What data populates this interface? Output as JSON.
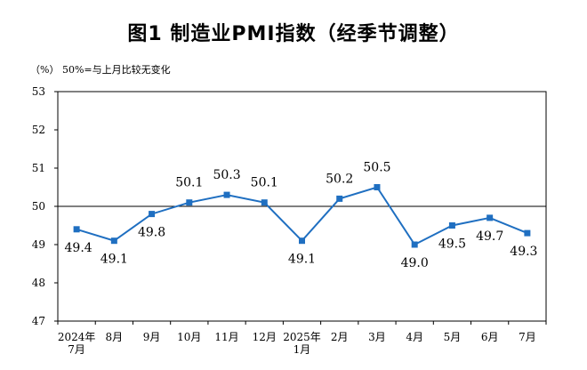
{
  "chart_data": {
    "type": "line",
    "title": "图1  制造业PMI指数（经季节调整）",
    "unit_note": "（%）  50%=与上月比较无变化",
    "categories": [
      [
        "2024年",
        "7月"
      ],
      [
        "8月"
      ],
      [
        "9月"
      ],
      [
        "10月"
      ],
      [
        "11月"
      ],
      [
        "12月"
      ],
      [
        "2025年",
        "1月"
      ],
      [
        "2月"
      ],
      [
        "3月"
      ],
      [
        "4月"
      ],
      [
        "5月"
      ],
      [
        "6月"
      ],
      [
        "7月"
      ]
    ],
    "series": [
      {
        "values": [
          49.4,
          49.1,
          49.8,
          50.1,
          50.3,
          50.1,
          49.1,
          50.2,
          50.5,
          49.0,
          49.5,
          49.7,
          49.3
        ],
        "labels": [
          "49.4",
          "49.1",
          "49.8",
          "50.1",
          "50.3",
          "50.1",
          "49.1",
          "50.2",
          "50.5",
          "49.0",
          "49.5",
          "49.7",
          "49.3"
        ],
        "color": "#1f6fc1"
      }
    ],
    "label_placement": [
      "below",
      "below",
      "below",
      "above",
      "above",
      "above",
      "below",
      "above",
      "above",
      "below",
      "below",
      "below",
      "below"
    ],
    "yticks": [
      47,
      48,
      49,
      50,
      51,
      52,
      53
    ],
    "ylim": [
      47,
      53
    ],
    "reference_line": 50,
    "grid": false
  }
}
